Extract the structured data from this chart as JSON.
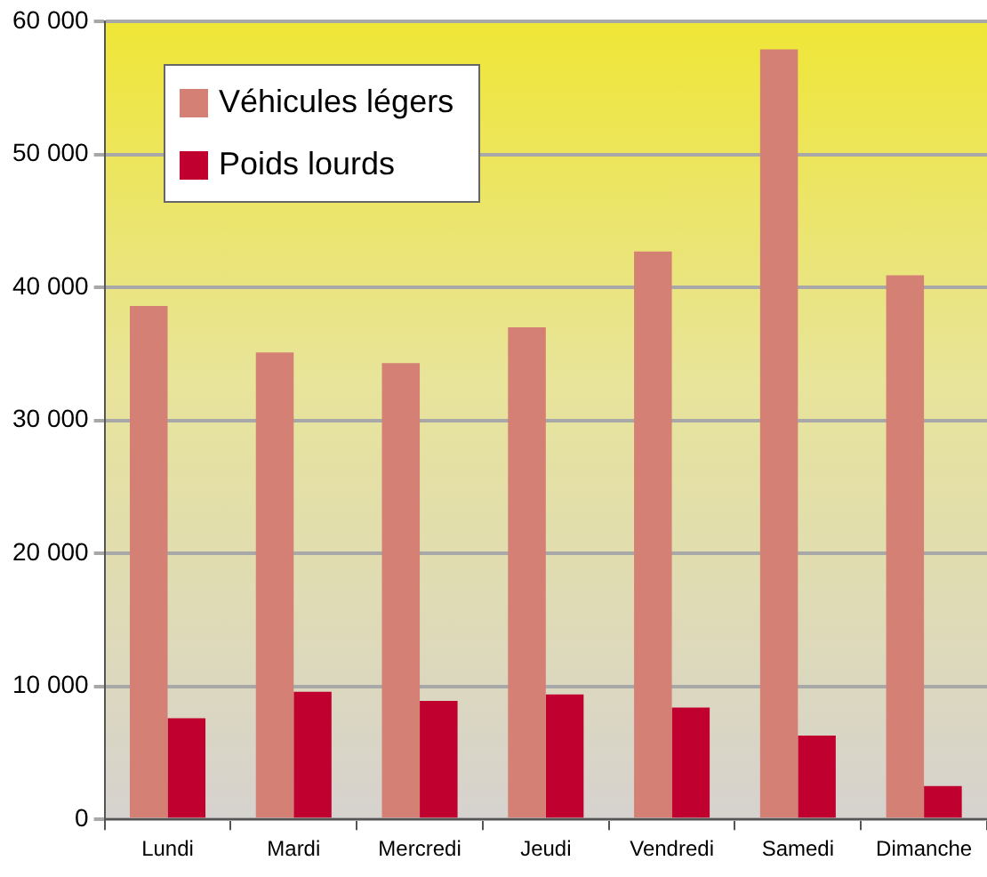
{
  "chart_data": {
    "type": "bar",
    "categories": [
      "Lundi",
      "Mardi",
      "Mercredi",
      "Jeudi",
      "Vendredi",
      "Samedi",
      "Dimanche"
    ],
    "series": [
      {
        "name": "Véhicules légers",
        "color": "#d58075",
        "values": [
          38600,
          35100,
          34300,
          37000,
          42700,
          57900,
          40900
        ]
      },
      {
        "name": "Poids lourds",
        "color": "#c0002e",
        "values": [
          7600,
          9600,
          8900,
          9400,
          8400,
          6300,
          2500
        ]
      }
    ],
    "ylim": [
      0,
      60000
    ],
    "yticks": [
      {
        "value": 0,
        "label": "0"
      },
      {
        "value": 10000,
        "label": "10 000"
      },
      {
        "value": 20000,
        "label": "20 000"
      },
      {
        "value": 30000,
        "label": "30 000"
      },
      {
        "value": 40000,
        "label": "40 000"
      },
      {
        "value": 50000,
        "label": "50 000"
      },
      {
        "value": 60000,
        "label": "60 000"
      }
    ],
    "grid": "y",
    "legend": "top left"
  }
}
